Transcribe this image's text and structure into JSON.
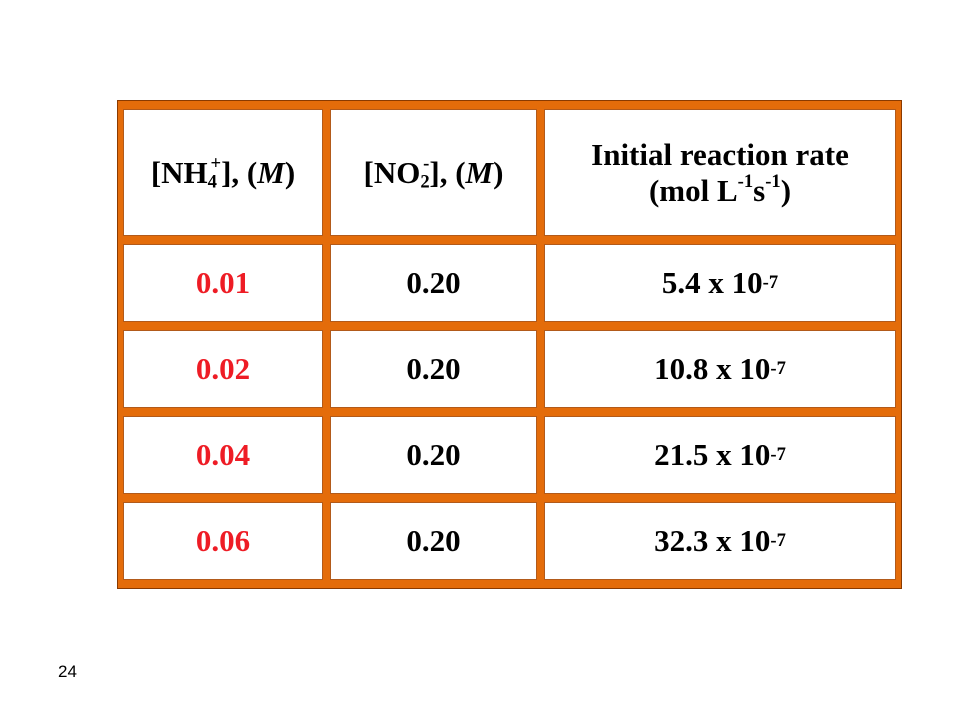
{
  "table": {
    "headers": {
      "col1": {
        "open": "[NH",
        "sub": "4",
        "sup": "+",
        "close": "], (",
        "unit": "M",
        "end": ")"
      },
      "col2": {
        "open": "[NO",
        "sub": "2",
        "sup": "-",
        "close": "], (",
        "unit": "M",
        "end": ")"
      },
      "col3": {
        "line1": "Initial reaction rate",
        "line2_a": "(mol L",
        "line2_exp1": "-1",
        "line2_b": "s",
        "line2_exp2": "-1",
        "line2_c": ")"
      }
    },
    "rows": [
      {
        "nh4": "0.01",
        "no2": "0.20",
        "rate_mantissa": "5.4 x 10",
        "rate_exp": "-7"
      },
      {
        "nh4": "0.02",
        "no2": "0.20",
        "rate_mantissa": "10.8 x 10",
        "rate_exp": "-7"
      },
      {
        "nh4": "0.04",
        "no2": "0.20",
        "rate_mantissa": "21.5 x 10",
        "rate_exp": "-7"
      },
      {
        "nh4": "0.06",
        "no2": "0.20",
        "rate_mantissa": "32.3 x 10",
        "rate_exp": "-7"
      }
    ],
    "colors": {
      "border": "#e46c0a",
      "highlight": "#ee1c25"
    }
  },
  "slide_number": "24"
}
